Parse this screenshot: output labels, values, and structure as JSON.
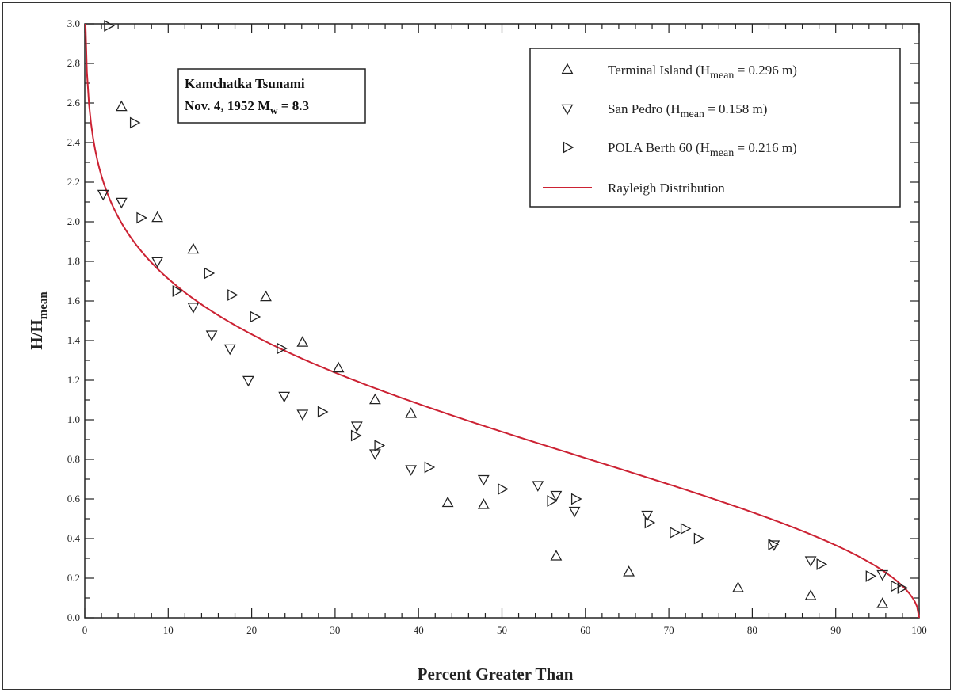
{
  "chart_data": {
    "type": "scatter",
    "title_lines": [
      "Kamchatka Tsunami",
      "Nov. 4, 1952  M",
      "w",
      " = 8.3"
    ],
    "xlabel": "Percent Greater Than",
    "ylabel_main": "H/H",
    "ylabel_sub": "mean",
    "xlim": [
      0,
      100
    ],
    "ylim": [
      0,
      3.0
    ],
    "x_ticks": [
      0,
      10,
      20,
      30,
      40,
      50,
      60,
      70,
      80,
      90,
      100
    ],
    "y_ticks": [
      0.0,
      0.2,
      0.4,
      0.6,
      0.8,
      1.0,
      1.2,
      1.4,
      1.6,
      1.8,
      2.0,
      2.2,
      2.4,
      2.6,
      2.8,
      3.0
    ],
    "x_tick_labels": [
      "0",
      "10",
      "20",
      "30",
      "40",
      "50",
      "60",
      "70",
      "80",
      "90",
      "100"
    ],
    "y_tick_labels": [
      "0.0",
      "0.2",
      "0.4",
      "0.6",
      "0.8",
      "1.0",
      "1.2",
      "1.4",
      "1.6",
      "1.8",
      "2.0",
      "2.2",
      "2.4",
      "2.6",
      "2.8",
      "3.0"
    ],
    "legend_position": "top-right",
    "series": [
      {
        "name": "Terminal Island",
        "legend_prefix": "Terminal Island  (H",
        "legend_sub": "mean",
        "legend_suffix": " = 0.296 m)",
        "marker": "triangle-up",
        "points": [
          [
            4.4,
            2.58
          ],
          [
            8.7,
            2.02
          ],
          [
            13.0,
            1.86
          ],
          [
            21.7,
            1.62
          ],
          [
            26.1,
            1.39
          ],
          [
            30.4,
            1.26
          ],
          [
            34.8,
            1.1
          ],
          [
            39.1,
            1.03
          ],
          [
            43.5,
            0.58
          ],
          [
            47.8,
            0.57
          ],
          [
            56.5,
            0.31
          ],
          [
            65.2,
            0.23
          ],
          [
            78.3,
            0.15
          ],
          [
            87.0,
            0.11
          ],
          [
            95.6,
            0.07
          ]
        ]
      },
      {
        "name": "San Pedro",
        "legend_prefix": "San Pedro   (H",
        "legend_sub": "mean",
        "legend_suffix": " = 0.158 m)",
        "marker": "triangle-down",
        "points": [
          [
            2.2,
            2.14
          ],
          [
            4.4,
            2.1
          ],
          [
            8.7,
            1.8
          ],
          [
            13.0,
            1.57
          ],
          [
            15.2,
            1.43
          ],
          [
            17.4,
            1.36
          ],
          [
            19.6,
            1.2
          ],
          [
            23.9,
            1.12
          ],
          [
            26.1,
            1.03
          ],
          [
            32.6,
            0.97
          ],
          [
            34.8,
            0.83
          ],
          [
            39.1,
            0.75
          ],
          [
            47.8,
            0.7
          ],
          [
            54.3,
            0.67
          ],
          [
            56.5,
            0.62
          ],
          [
            58.7,
            0.54
          ],
          [
            67.4,
            0.52
          ],
          [
            82.6,
            0.37
          ],
          [
            87.0,
            0.29
          ],
          [
            95.6,
            0.22
          ]
        ]
      },
      {
        "name": "POLA Berth 60",
        "legend_prefix": "POLA Berth 60   (H",
        "legend_sub": "mean",
        "legend_suffix": " = 0.216 m)",
        "marker": "triangle-right",
        "points": [
          [
            2.8,
            2.99
          ],
          [
            5.9,
            2.5
          ],
          [
            6.7,
            2.02
          ],
          [
            11.0,
            1.65
          ],
          [
            14.8,
            1.74
          ],
          [
            17.6,
            1.63
          ],
          [
            20.3,
            1.52
          ],
          [
            23.5,
            1.36
          ],
          [
            28.4,
            1.04
          ],
          [
            32.4,
            0.92
          ],
          [
            35.2,
            0.87
          ],
          [
            41.2,
            0.76
          ],
          [
            50.0,
            0.65
          ],
          [
            55.9,
            0.59
          ],
          [
            58.8,
            0.6
          ],
          [
            67.6,
            0.48
          ],
          [
            70.6,
            0.43
          ],
          [
            71.9,
            0.45
          ],
          [
            73.5,
            0.4
          ],
          [
            82.4,
            0.37
          ],
          [
            88.2,
            0.27
          ],
          [
            94.1,
            0.21
          ],
          [
            97.1,
            0.16
          ],
          [
            97.9,
            0.15
          ]
        ]
      }
    ],
    "curve": {
      "name": "Rayleigh Distribution",
      "color": "#cc2233",
      "formula": "H/Hmean = (2/sqrt(pi)) * sqrt(-ln(P/100))"
    }
  }
}
